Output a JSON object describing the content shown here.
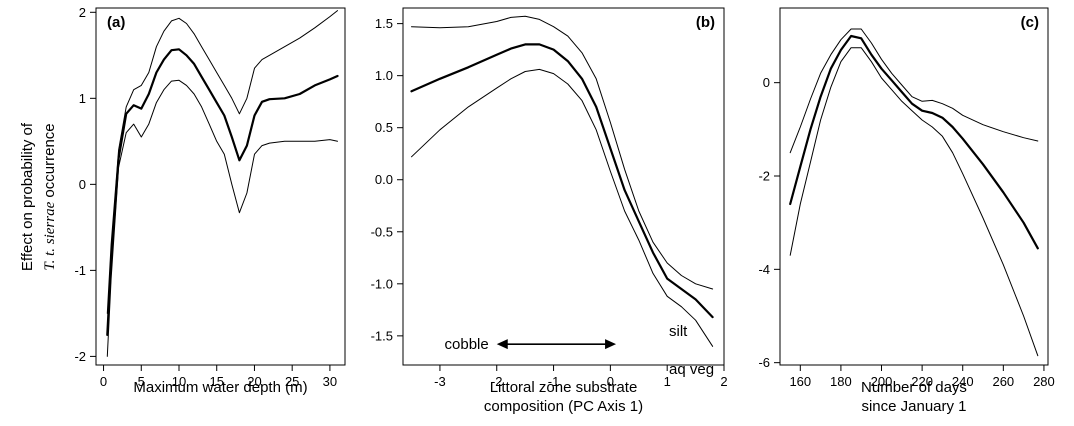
{
  "y_axis_title_line1": "Effect on probability of",
  "y_axis_title_line2_italic": "T. t. sierrae",
  "y_axis_title_line2_rest": " occurrence",
  "chart_data": [
    {
      "type": "line",
      "panel_label": "(a)",
      "xlabel": [
        "Maximum water depth (m)"
      ],
      "ylabel": "",
      "xlim": [
        -1,
        32
      ],
      "ylim": [
        -2.1,
        2.05
      ],
      "xticks": [
        0,
        5,
        10,
        15,
        20,
        25,
        30
      ],
      "yticks": [
        -2,
        -1,
        0,
        1,
        2
      ],
      "series": [
        {
          "role": "estimate",
          "x": [
            0.5,
            1,
            2,
            3,
            4,
            5,
            6,
            7,
            8,
            9,
            10,
            11,
            12,
            13,
            14,
            15,
            16,
            17,
            18,
            19,
            20,
            21,
            22,
            24,
            26,
            28,
            30,
            31
          ],
          "y": [
            -1.75,
            -0.9,
            0.3,
            0.82,
            0.92,
            0.88,
            1.05,
            1.3,
            1.45,
            1.56,
            1.57,
            1.5,
            1.4,
            1.25,
            1.1,
            0.95,
            0.8,
            0.55,
            0.28,
            0.45,
            0.8,
            0.96,
            0.99,
            1.0,
            1.05,
            1.15,
            1.22,
            1.26
          ]
        },
        {
          "role": "upper",
          "x": [
            0.5,
            1,
            2,
            3,
            4,
            5,
            6,
            7,
            8,
            9,
            10,
            11,
            12,
            13,
            14,
            15,
            16,
            17,
            18,
            19,
            20,
            21,
            22,
            24,
            26,
            28,
            30,
            31
          ],
          "y": [
            -1.5,
            -0.7,
            0.4,
            0.9,
            1.1,
            1.15,
            1.3,
            1.6,
            1.78,
            1.9,
            1.93,
            1.87,
            1.75,
            1.6,
            1.45,
            1.3,
            1.15,
            1.0,
            0.82,
            1.0,
            1.35,
            1.45,
            1.5,
            1.6,
            1.7,
            1.82,
            1.95,
            2.02
          ]
        },
        {
          "role": "lower",
          "x": [
            0.5,
            1,
            2,
            3,
            4,
            5,
            6,
            7,
            8,
            9,
            10,
            11,
            12,
            13,
            14,
            15,
            16,
            17,
            18,
            19,
            20,
            21,
            22,
            24,
            26,
            28,
            30,
            31
          ],
          "y": [
            -2.0,
            -1.1,
            0.2,
            0.6,
            0.7,
            0.55,
            0.7,
            0.95,
            1.1,
            1.2,
            1.21,
            1.15,
            1.05,
            0.9,
            0.7,
            0.5,
            0.35,
            0.0,
            -0.33,
            -0.1,
            0.35,
            0.45,
            0.48,
            0.5,
            0.5,
            0.5,
            0.52,
            0.5
          ]
        }
      ]
    },
    {
      "type": "line",
      "panel_label": "(b)",
      "xlabel": [
        "Littoral zone substrate",
        "composition (PC Axis 1)"
      ],
      "ylabel": "",
      "xlim": [
        -3.65,
        2.0
      ],
      "ylim": [
        -1.78,
        1.65
      ],
      "xticks": [
        -3,
        -2,
        -1,
        0,
        1,
        2
      ],
      "yticks": [
        -1.5,
        -1.0,
        -0.5,
        0.0,
        0.5,
        1.0,
        1.5
      ],
      "ytick_labels": [
        "-1.5",
        "-1.0",
        "-0.5",
        "0.0",
        "0.5",
        "1.0",
        "1.5"
      ],
      "annotations": {
        "left": "cobble",
        "right_top": "silt",
        "right_bottom": "aq veg"
      },
      "arrow": {
        "from_x": -2.0,
        "to_x": 0.1,
        "y": -1.58
      },
      "series": [
        {
          "role": "estimate",
          "x": [
            -3.5,
            -3.0,
            -2.5,
            -2.0,
            -1.75,
            -1.5,
            -1.25,
            -1.0,
            -0.75,
            -0.5,
            -0.25,
            0.0,
            0.25,
            0.5,
            0.75,
            1.0,
            1.25,
            1.5,
            1.8
          ],
          "y": [
            0.85,
            0.97,
            1.08,
            1.2,
            1.26,
            1.3,
            1.3,
            1.25,
            1.14,
            0.97,
            0.7,
            0.3,
            -0.1,
            -0.4,
            -0.7,
            -0.95,
            -1.05,
            -1.15,
            -1.32
          ]
        },
        {
          "role": "upper",
          "x": [
            -3.5,
            -3.0,
            -2.5,
            -2.0,
            -1.75,
            -1.5,
            -1.25,
            -1.0,
            -0.75,
            -0.5,
            -0.25,
            0.0,
            0.25,
            0.5,
            0.75,
            1.0,
            1.25,
            1.5,
            1.8
          ],
          "y": [
            1.47,
            1.46,
            1.47,
            1.52,
            1.56,
            1.57,
            1.54,
            1.47,
            1.38,
            1.22,
            0.97,
            0.55,
            0.1,
            -0.3,
            -0.6,
            -0.8,
            -0.92,
            -1.0,
            -1.05
          ]
        },
        {
          "role": "lower",
          "x": [
            -3.5,
            -3.0,
            -2.5,
            -2.0,
            -1.75,
            -1.5,
            -1.25,
            -1.0,
            -0.75,
            -0.5,
            -0.25,
            0.0,
            0.25,
            0.5,
            0.75,
            1.0,
            1.25,
            1.5,
            1.8
          ],
          "y": [
            0.22,
            0.48,
            0.7,
            0.88,
            0.97,
            1.04,
            1.06,
            1.02,
            0.92,
            0.76,
            0.48,
            0.08,
            -0.3,
            -0.58,
            -0.9,
            -1.12,
            -1.22,
            -1.35,
            -1.6
          ]
        }
      ]
    },
    {
      "type": "line",
      "panel_label": "(c)",
      "xlabel": [
        "Number of days",
        "since January 1"
      ],
      "ylabel": "",
      "xlim": [
        150,
        282
      ],
      "ylim": [
        -6.05,
        1.6
      ],
      "xticks": [
        160,
        180,
        200,
        220,
        240,
        260,
        280
      ],
      "yticks": [
        -6,
        -4,
        -2,
        0
      ],
      "series": [
        {
          "role": "estimate",
          "x": [
            155,
            160,
            165,
            170,
            175,
            180,
            185,
            190,
            195,
            200,
            205,
            210,
            215,
            220,
            225,
            230,
            235,
            240,
            250,
            260,
            270,
            277
          ],
          "y": [
            -2.6,
            -1.8,
            -1.0,
            -0.3,
            0.3,
            0.7,
            1.0,
            0.95,
            0.6,
            0.3,
            0.05,
            -0.2,
            -0.45,
            -0.6,
            -0.65,
            -0.75,
            -0.95,
            -1.2,
            -1.75,
            -2.35,
            -3.0,
            -3.55
          ]
        },
        {
          "role": "upper",
          "x": [
            155,
            160,
            165,
            170,
            175,
            180,
            185,
            190,
            195,
            200,
            205,
            210,
            215,
            220,
            225,
            230,
            235,
            240,
            250,
            260,
            270,
            277
          ],
          "y": [
            -1.5,
            -0.95,
            -0.35,
            0.2,
            0.6,
            0.92,
            1.15,
            1.15,
            0.85,
            0.5,
            0.2,
            -0.05,
            -0.3,
            -0.4,
            -0.38,
            -0.45,
            -0.55,
            -0.7,
            -0.9,
            -1.05,
            -1.18,
            -1.25
          ]
        },
        {
          "role": "lower",
          "x": [
            155,
            160,
            165,
            170,
            175,
            180,
            185,
            190,
            195,
            200,
            205,
            210,
            215,
            220,
            225,
            230,
            235,
            240,
            250,
            260,
            270,
            277
          ],
          "y": [
            -3.7,
            -2.6,
            -1.7,
            -0.8,
            -0.1,
            0.45,
            0.75,
            0.75,
            0.45,
            0.1,
            -0.15,
            -0.4,
            -0.6,
            -0.8,
            -0.95,
            -1.15,
            -1.5,
            -1.95,
            -2.9,
            -3.9,
            -5.0,
            -5.85
          ]
        }
      ]
    }
  ]
}
